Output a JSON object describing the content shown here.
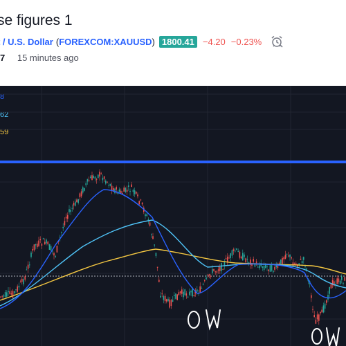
{
  "header": {
    "title": "se figures 1",
    "symbol_name": "ot / U.S. Dollar",
    "symbol_open": "(",
    "symbol_ticker": "FOREXCOM:XAUUSD",
    "symbol_close": ")",
    "price": "1800.41",
    "change": "−4.20",
    "change_pct": "−0.23%",
    "id_fragment": "7",
    "published": "15 minutes ago",
    "alarm_icon": "alarm-clock-icon"
  },
  "legend": {
    "values": [
      "8",
      "62",
      "59"
    ],
    "colors": [
      "#2962ff",
      "#4fc3f7",
      "#f5c842"
    ]
  },
  "colors": {
    "background": "#131722",
    "up": "#26a69a",
    "down": "#ef5350",
    "ma_fast": "#2962ff",
    "ma_mid": "#4fc3f7",
    "ma_slow": "#f5c842",
    "resistance": "#2962ff",
    "price_badge": "#26a69a"
  },
  "annotations": [
    "OW",
    "OW"
  ]
}
